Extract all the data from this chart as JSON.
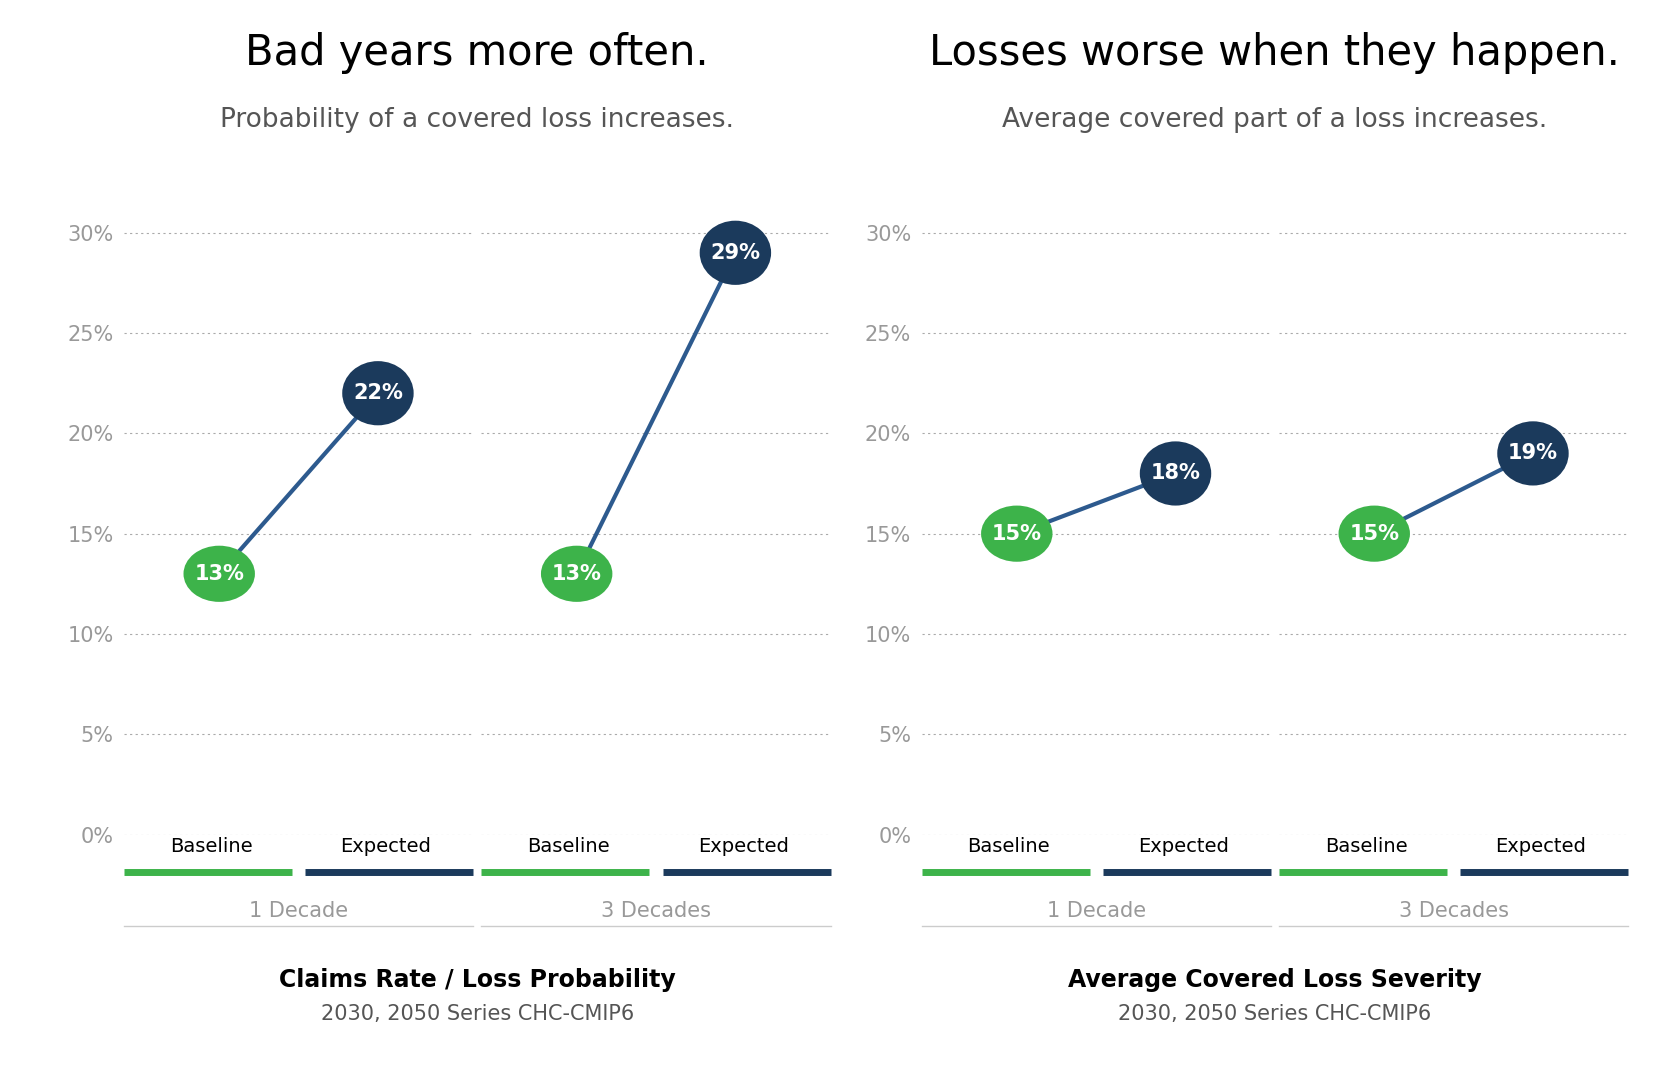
{
  "left_title": "Bad years more often.",
  "left_subtitle": "Probability of a covered loss increases.",
  "right_title": "Losses worse when they happen.",
  "right_subtitle": "Average covered part of a loss increases.",
  "left_xlabel1": "Claims Rate / Loss Probability",
  "left_xlabel2": "2030, 2050 Series CHC-CMIP6",
  "right_xlabel1": "Average Covered Loss Severity",
  "right_xlabel2": "2030, 2050 Series CHC-CMIP6",
  "panels": [
    {
      "baseline": 13,
      "expected": 22,
      "label": "1 Decade"
    },
    {
      "baseline": 13,
      "expected": 29,
      "label": "3 Decades"
    },
    {
      "baseline": 15,
      "expected": 18,
      "label": "1 Decade"
    },
    {
      "baseline": 15,
      "expected": 19,
      "label": "3 Decades"
    }
  ],
  "yticks": [
    0,
    5,
    10,
    15,
    20,
    25,
    30
  ],
  "ylim": [
    0,
    32
  ],
  "green_color": "#3db34a",
  "navy_color": "#1b3a5c",
  "line_color": "#2d5a8e",
  "grid_color": "#aaaaaa",
  "axis_label_color": "#999999",
  "separator_color": "#cccccc",
  "background_color": "#ffffff",
  "title_fontsize": 30,
  "subtitle_fontsize": 19,
  "tick_fontsize": 15,
  "label_fontsize": 14,
  "decade_fontsize": 15,
  "xlabel_fontsize1": 17,
  "xlabel_fontsize2": 15
}
